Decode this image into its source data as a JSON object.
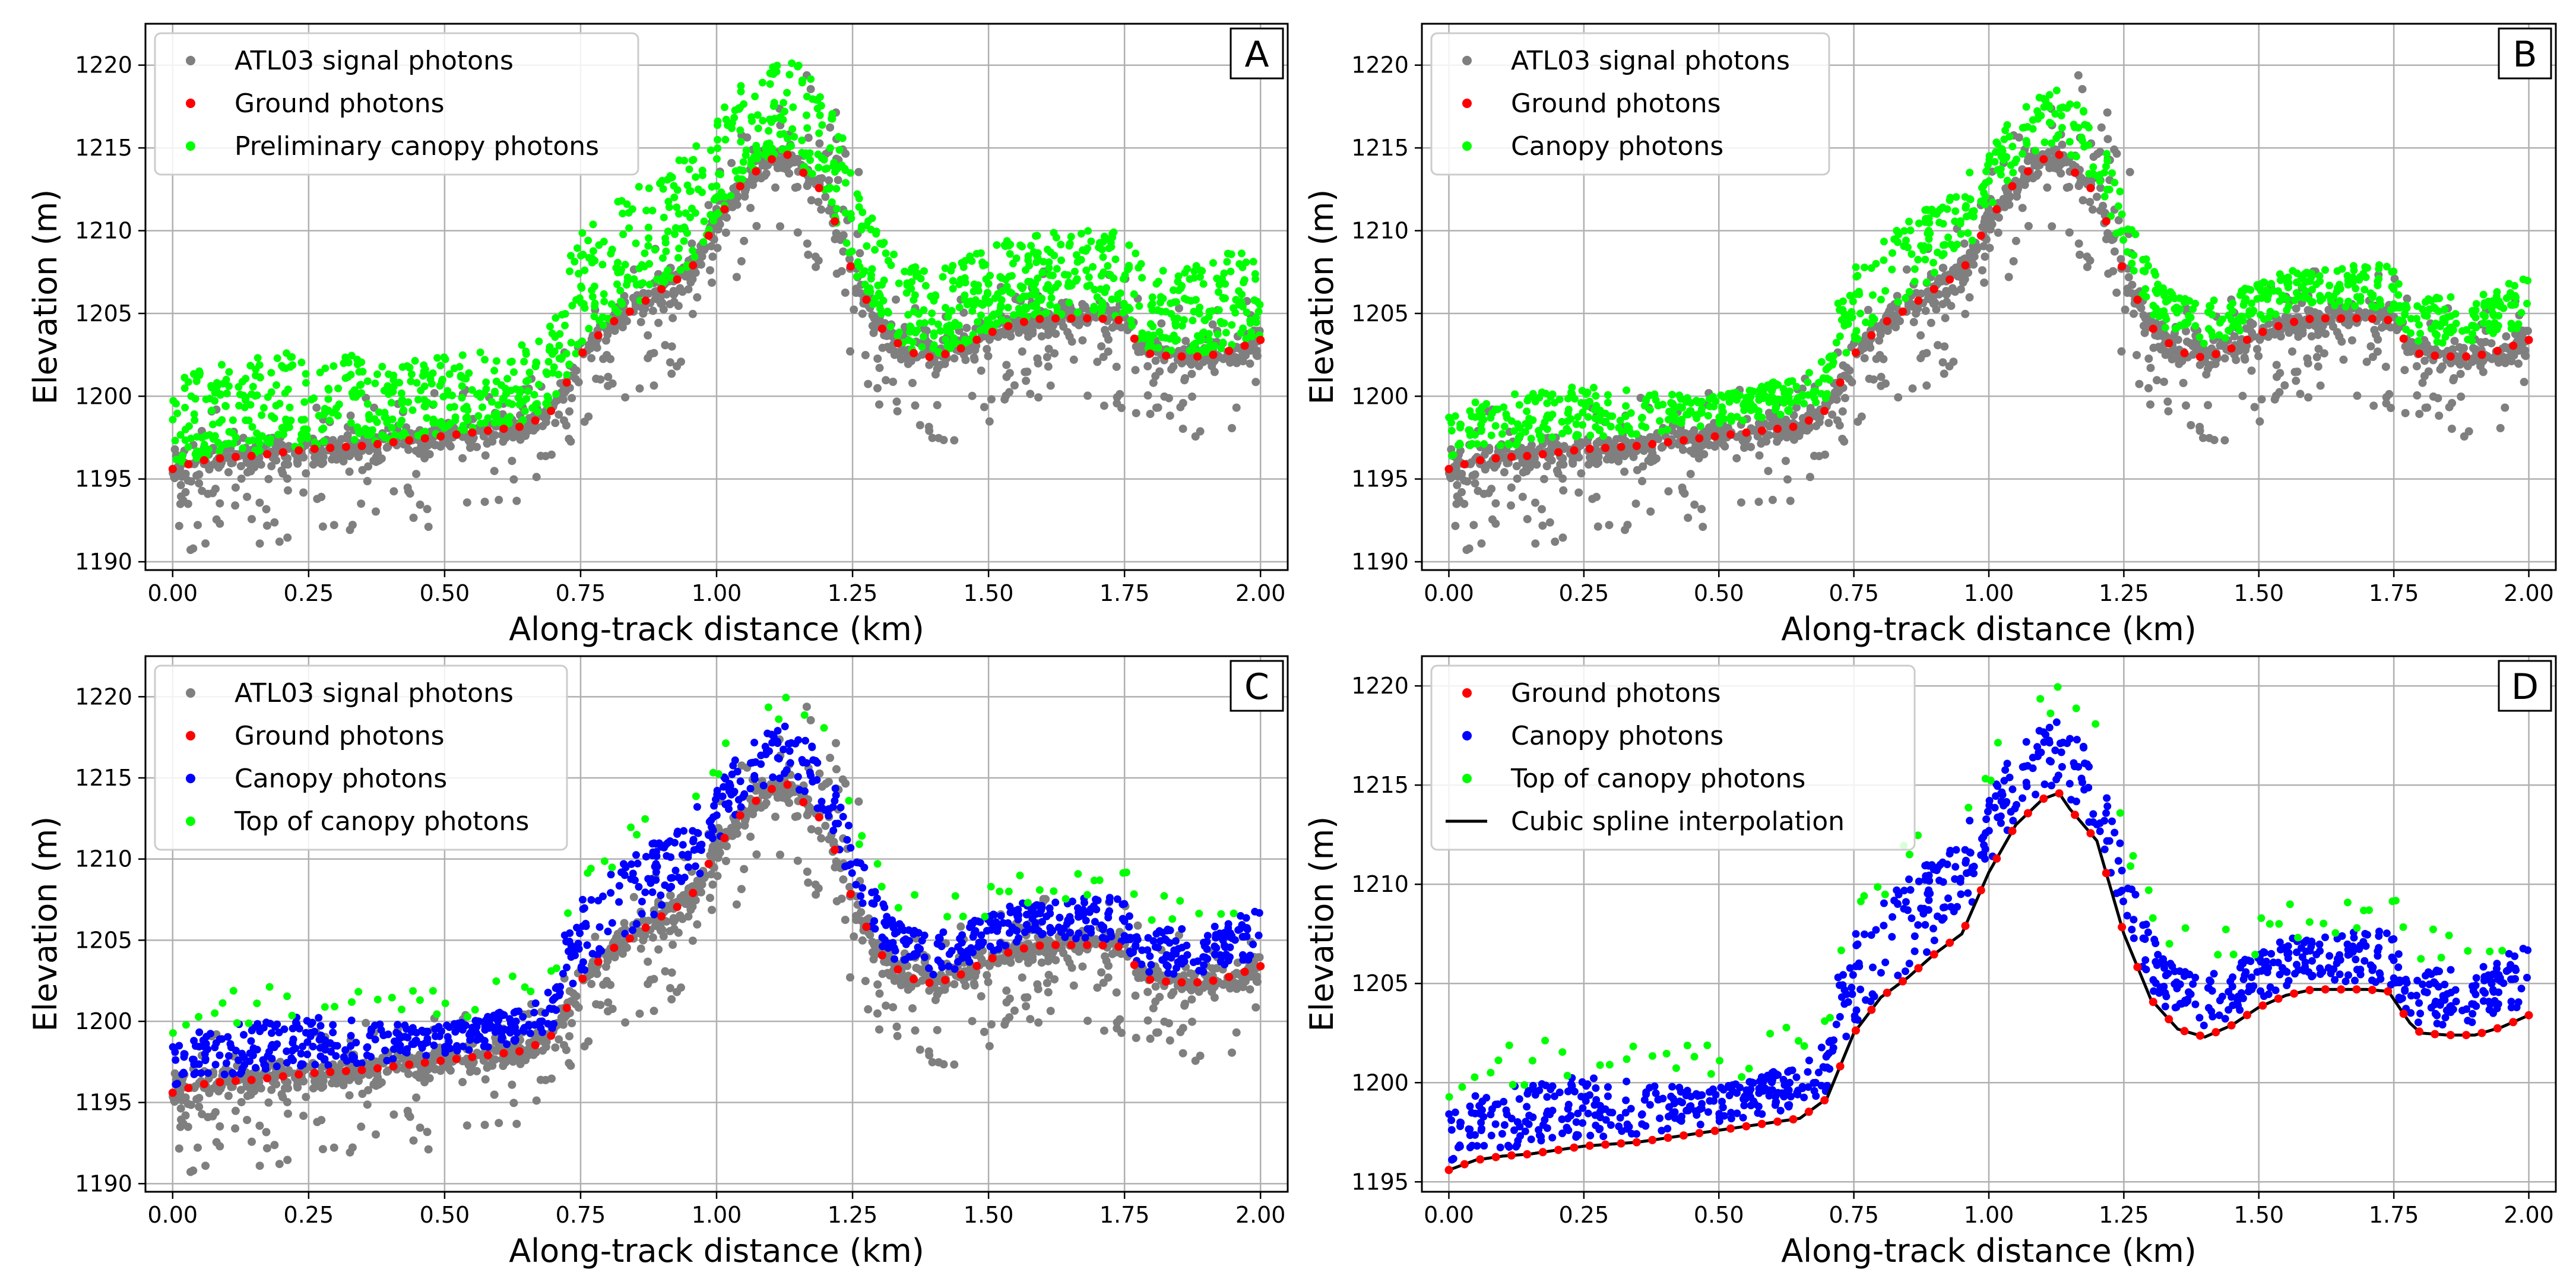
{
  "colors": {
    "signal": "#7f7f7f",
    "ground": "#ff0000",
    "canopy": "#0000ff",
    "green": "#00ff00",
    "spline": "#000000",
    "grid": "#b0b0b0"
  },
  "chart_data": [
    {
      "type": "scatter",
      "panel": "A",
      "xlabel": "Along-track distance (km)",
      "ylabel": "Elevation (m)",
      "xlim": [
        -0.05,
        2.05
      ],
      "ylim": [
        1189.5,
        1222.5
      ],
      "xticks": [
        0.0,
        0.25,
        0.5,
        0.75,
        1.0,
        1.25,
        1.5,
        1.75,
        2.0
      ],
      "xtick_labels": [
        "0.00",
        "0.25",
        "0.50",
        "0.75",
        "1.00",
        "1.25",
        "1.50",
        "1.75",
        "2.00"
      ],
      "yticks": [
        1190,
        1195,
        1200,
        1205,
        1210,
        1215,
        1220
      ],
      "ytick_labels": [
        "1190",
        "1195",
        "1200",
        "1205",
        "1210",
        "1215",
        "1220"
      ],
      "grid": true,
      "legend_position": "top-left",
      "legend": [
        "ATL03 signal photons",
        "Ground photons",
        "Preliminary canopy photons"
      ],
      "series": [
        {
          "name": "ATL03 signal photons",
          "role": "signal",
          "color": "#7f7f7f"
        },
        {
          "name": "Ground photons",
          "role": "ground",
          "color": "#ff0000"
        },
        {
          "name": "Preliminary canopy photons",
          "role": "prelim",
          "color": "#00ff00"
        }
      ]
    },
    {
      "type": "scatter",
      "panel": "B",
      "xlabel": "Along-track distance (km)",
      "ylabel": "Elevation (m)",
      "xlim": [
        -0.05,
        2.05
      ],
      "ylim": [
        1189.5,
        1222.5
      ],
      "xticks": [
        0.0,
        0.25,
        0.5,
        0.75,
        1.0,
        1.25,
        1.5,
        1.75,
        2.0
      ],
      "xtick_labels": [
        "0.00",
        "0.25",
        "0.50",
        "0.75",
        "1.00",
        "1.25",
        "1.50",
        "1.75",
        "2.00"
      ],
      "yticks": [
        1190,
        1195,
        1200,
        1205,
        1210,
        1215,
        1220
      ],
      "ytick_labels": [
        "1190",
        "1195",
        "1200",
        "1205",
        "1210",
        "1215",
        "1220"
      ],
      "grid": true,
      "legend_position": "top-left",
      "legend": [
        "ATL03 signal photons",
        "Ground photons",
        "Canopy photons"
      ],
      "series": [
        {
          "name": "ATL03 signal photons",
          "role": "signal",
          "color": "#7f7f7f"
        },
        {
          "name": "Ground photons",
          "role": "ground",
          "color": "#ff0000"
        },
        {
          "name": "Canopy photons",
          "role": "canopyGreen",
          "color": "#00ff00"
        }
      ]
    },
    {
      "type": "scatter",
      "panel": "C",
      "xlabel": "Along-track distance (km)",
      "ylabel": "Elevation (m)",
      "xlim": [
        -0.05,
        2.05
      ],
      "ylim": [
        1189.5,
        1222.5
      ],
      "xticks": [
        0.0,
        0.25,
        0.5,
        0.75,
        1.0,
        1.25,
        1.5,
        1.75,
        2.0
      ],
      "xtick_labels": [
        "0.00",
        "0.25",
        "0.50",
        "0.75",
        "1.00",
        "1.25",
        "1.50",
        "1.75",
        "2.00"
      ],
      "yticks": [
        1190,
        1195,
        1200,
        1205,
        1210,
        1215,
        1220
      ],
      "ytick_labels": [
        "1190",
        "1195",
        "1200",
        "1205",
        "1210",
        "1215",
        "1220"
      ],
      "grid": true,
      "legend_position": "top-left",
      "legend": [
        "ATL03 signal photons",
        "Ground photons",
        "Canopy photons",
        "Top of canopy photons"
      ],
      "series": [
        {
          "name": "ATL03 signal photons",
          "role": "signal",
          "color": "#7f7f7f"
        },
        {
          "name": "Ground photons",
          "role": "ground",
          "color": "#ff0000"
        },
        {
          "name": "Canopy photons",
          "role": "canopyBlue",
          "color": "#0000ff"
        },
        {
          "name": "Top of canopy photons",
          "role": "top",
          "color": "#00ff00"
        }
      ]
    },
    {
      "type": "scatter",
      "panel": "D",
      "xlabel": "Along-track distance (km)",
      "ylabel": "Elevation (m)",
      "xlim": [
        -0.05,
        2.05
      ],
      "ylim": [
        1194.5,
        1221.5
      ],
      "xticks": [
        0.0,
        0.25,
        0.5,
        0.75,
        1.0,
        1.25,
        1.5,
        1.75,
        2.0
      ],
      "xtick_labels": [
        "0.00",
        "0.25",
        "0.50",
        "0.75",
        "1.00",
        "1.25",
        "1.50",
        "1.75",
        "2.00"
      ],
      "yticks": [
        1195,
        1200,
        1205,
        1210,
        1215,
        1220
      ],
      "ytick_labels": [
        "1195",
        "1200",
        "1205",
        "1210",
        "1215",
        "1220"
      ],
      "grid": true,
      "legend_position": "top-left",
      "legend": [
        "Ground photons",
        "Canopy photons",
        "Top of canopy photons",
        "Cubic spline interpolation"
      ],
      "series": [
        {
          "name": "Ground photons",
          "role": "ground",
          "color": "#ff0000"
        },
        {
          "name": "Canopy photons",
          "role": "canopyBlue",
          "color": "#0000ff"
        },
        {
          "name": "Top of canopy photons",
          "role": "top",
          "color": "#00ff00"
        },
        {
          "name": "Cubic spline interpolation",
          "role": "spline",
          "color": "#000000"
        }
      ]
    }
  ],
  "ground_profile": {
    "x": [
      0.0,
      0.05,
      0.1,
      0.15,
      0.2,
      0.25,
      0.3,
      0.35,
      0.4,
      0.45,
      0.5,
      0.55,
      0.6,
      0.65,
      0.7,
      0.75,
      0.8,
      0.85,
      0.9,
      0.95,
      1.0,
      1.05,
      1.1,
      1.13,
      1.15,
      1.2,
      1.25,
      1.3,
      1.35,
      1.4,
      1.45,
      1.5,
      1.55,
      1.6,
      1.65,
      1.7,
      1.74,
      1.78,
      1.8,
      1.85,
      1.9,
      1.95,
      2.0
    ],
    "y": [
      1195.6,
      1196.1,
      1196.3,
      1196.4,
      1196.6,
      1196.8,
      1196.9,
      1197.0,
      1197.2,
      1197.4,
      1197.6,
      1197.8,
      1198.0,
      1198.2,
      1199.2,
      1202.5,
      1204.3,
      1205.3,
      1206.5,
      1207.5,
      1210.6,
      1213.0,
      1214.3,
      1214.6,
      1213.8,
      1212.2,
      1207.5,
      1204.2,
      1202.7,
      1202.3,
      1202.9,
      1203.8,
      1204.4,
      1204.7,
      1204.7,
      1204.7,
      1204.6,
      1203.0,
      1202.5,
      1202.4,
      1202.4,
      1202.8,
      1203.4
    ]
  },
  "photon_ranges": {
    "x_range_km": [
      0.0,
      2.0
    ],
    "signal_count": 1450,
    "ground_count": 70,
    "canopy_count": 900
  }
}
